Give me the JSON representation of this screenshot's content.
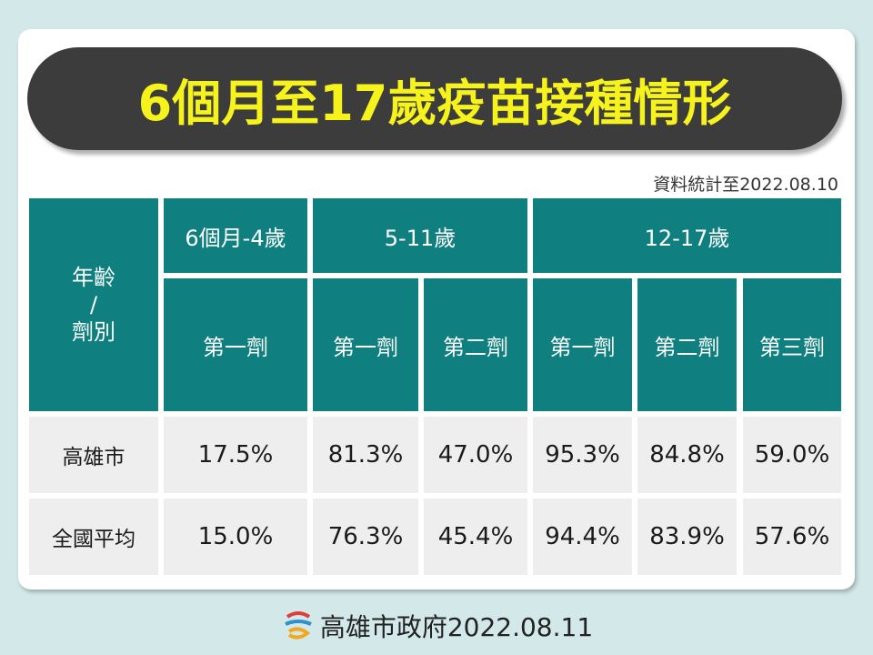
{
  "header": {
    "title": "6個月至17歲疫苗接種情形"
  },
  "note": "資料統計至2022.08.10",
  "table": {
    "corner": [
      "年齡",
      "/",
      "劑別"
    ],
    "groups": [
      "6個月-4歲",
      "5-11歲",
      "12-17歲"
    ],
    "doses": [
      "第一劑",
      "第一劑",
      "第二劑",
      "第一劑",
      "第二劑",
      "第三劑"
    ],
    "rows": [
      {
        "label": "高雄市",
        "values": [
          "17.5%",
          "81.3%",
          "47.0%",
          "95.3%",
          "84.8%",
          "59.0%"
        ]
      },
      {
        "label": "全國平均",
        "values": [
          "15.0%",
          "76.3%",
          "45.4%",
          "94.4%",
          "83.9%",
          "57.6%"
        ]
      }
    ]
  },
  "footer": "高雄市政府2022.08.11"
}
